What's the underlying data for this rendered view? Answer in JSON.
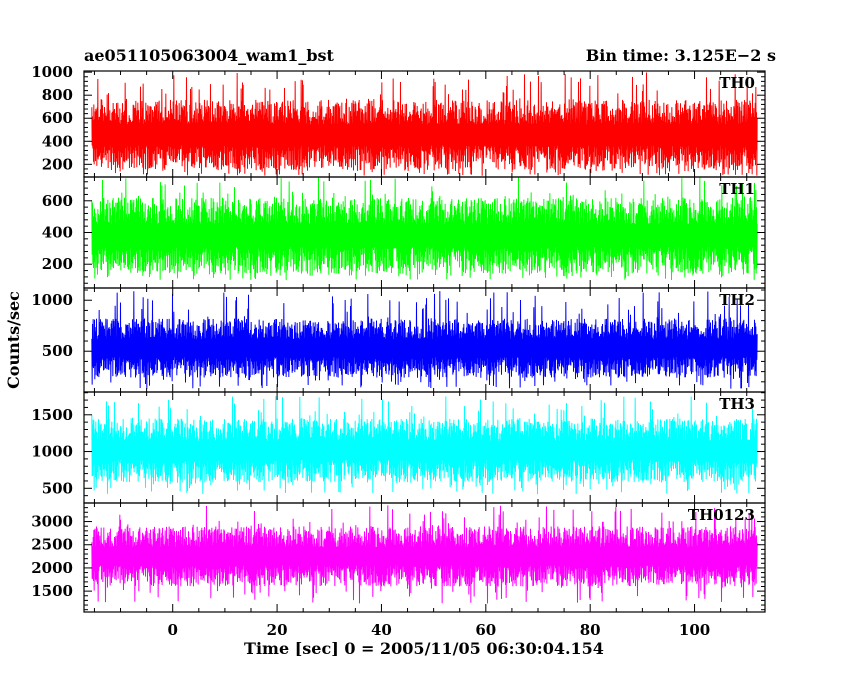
{
  "header": {
    "title": "ae051105063004_wam1_bst",
    "bin_time": "Bin time: 3.125E−2 s"
  },
  "chart_data": {
    "type": "line",
    "xlabel": "Time [sec] 0 = 2005/11/05 06:30:04.154",
    "ylabel": "Counts/sec",
    "xlim": [
      -17,
      113.5
    ],
    "xticks": [
      0,
      20,
      40,
      60,
      80,
      100
    ],
    "xtick_labels": [
      "0",
      "20",
      "40",
      "60",
      "80",
      "100"
    ],
    "x_start": -15.5,
    "x_end": 112,
    "panels": [
      {
        "label": "TH0",
        "color": "#ff0000",
        "ylim": [
          90,
          1010
        ],
        "yticks": [
          200,
          400,
          600,
          800,
          1000
        ],
        "ytick_labels": [
          "200",
          "400",
          "600",
          "800",
          "1000"
        ],
        "lower_envelope": 150,
        "lower_minimum": 100,
        "upper_envelope": 760,
        "upper_maximum": 1000
      },
      {
        "label": "TH1",
        "color": "#00ff00",
        "ylim": [
          50,
          750
        ],
        "yticks": [
          200,
          400,
          600
        ],
        "ytick_labels": [
          "200",
          "400",
          "600"
        ],
        "lower_envelope": 140,
        "lower_minimum": 100,
        "upper_envelope": 620,
        "upper_maximum": 750
      },
      {
        "label": "TH2",
        "color": "#0000ff",
        "ylim": [
          100,
          1120
        ],
        "yticks": [
          500,
          1000
        ],
        "ytick_labels": [
          "500",
          "1000"
        ],
        "lower_envelope": 240,
        "lower_minimum": 130,
        "upper_envelope": 820,
        "upper_maximum": 1090
      },
      {
        "label": "TH3",
        "color": "#00ffff",
        "ylim": [
          300,
          1810
        ],
        "yticks": [
          500,
          1000,
          1500
        ],
        "ytick_labels": [
          "500",
          "1000",
          "1500"
        ],
        "lower_envelope": 580,
        "lower_minimum": 420,
        "upper_envelope": 1450,
        "upper_maximum": 1770
      },
      {
        "label": "TH0123",
        "color": "#ff00ff",
        "ylim": [
          1050,
          3400
        ],
        "yticks": [
          1500,
          2000,
          2500,
          3000
        ],
        "ytick_labels": [
          "1500",
          "2000",
          "2500",
          "3000"
        ],
        "lower_envelope": 1600,
        "lower_minimum": 1230,
        "upper_envelope": 2900,
        "upper_maximum": 3350
      }
    ]
  }
}
